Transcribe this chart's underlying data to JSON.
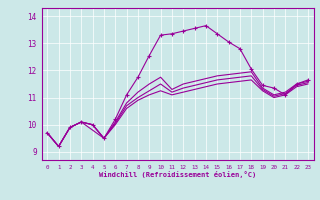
{
  "xlabel": "Windchill (Refroidissement éolien,°C)",
  "bg_color": "#cce8e8",
  "line_color": "#990099",
  "xlim": [
    -0.5,
    23.5
  ],
  "ylim": [
    8.7,
    14.3
  ],
  "yticks": [
    9,
    10,
    11,
    12,
    13,
    14
  ],
  "xticks": [
    0,
    1,
    2,
    3,
    4,
    5,
    6,
    7,
    8,
    9,
    10,
    11,
    12,
    13,
    14,
    15,
    16,
    17,
    18,
    19,
    20,
    21,
    22,
    23
  ],
  "lines": [
    {
      "x": [
        0,
        1,
        2,
        3,
        4,
        5,
        6,
        7,
        8,
        9,
        10,
        11,
        12,
        13,
        14,
        15,
        16,
        17,
        18,
        19,
        20,
        21,
        22,
        23
      ],
      "y": [
        9.7,
        9.2,
        9.9,
        10.1,
        10.0,
        9.5,
        10.0,
        10.6,
        10.9,
        11.1,
        11.25,
        11.1,
        11.2,
        11.3,
        11.4,
        11.5,
        11.55,
        11.6,
        11.65,
        11.25,
        11.0,
        11.1,
        11.4,
        11.5
      ],
      "marker": null,
      "lw": 0.8
    },
    {
      "x": [
        0,
        1,
        2,
        3,
        4,
        5,
        6,
        7,
        8,
        9,
        10,
        11,
        12,
        13,
        14,
        15,
        16,
        17,
        18,
        19,
        20,
        21,
        22,
        23
      ],
      "y": [
        9.7,
        9.2,
        9.9,
        10.1,
        10.0,
        9.5,
        10.05,
        10.7,
        11.0,
        11.25,
        11.5,
        11.2,
        11.35,
        11.45,
        11.55,
        11.65,
        11.7,
        11.75,
        11.8,
        11.3,
        11.05,
        11.15,
        11.45,
        11.55
      ],
      "marker": null,
      "lw": 0.8
    },
    {
      "x": [
        0,
        1,
        2,
        3,
        4,
        5,
        6,
        7,
        8,
        9,
        10,
        11,
        12,
        13,
        14,
        15,
        16,
        17,
        18,
        19,
        20,
        21,
        22,
        23
      ],
      "y": [
        9.7,
        9.2,
        9.9,
        10.1,
        9.8,
        9.5,
        10.1,
        10.8,
        11.2,
        11.5,
        11.75,
        11.3,
        11.5,
        11.6,
        11.7,
        11.8,
        11.85,
        11.9,
        11.95,
        11.35,
        11.1,
        11.2,
        11.5,
        11.6
      ],
      "marker": null,
      "lw": 0.8
    },
    {
      "x": [
        0,
        1,
        2,
        3,
        4,
        5,
        6,
        7,
        8,
        9,
        10,
        11,
        12,
        13,
        14,
        15,
        16,
        17,
        18,
        19,
        20,
        21,
        22,
        23
      ],
      "y": [
        9.7,
        9.2,
        9.9,
        10.1,
        10.0,
        9.5,
        10.2,
        11.1,
        11.75,
        12.55,
        13.3,
        13.35,
        13.45,
        13.55,
        13.65,
        13.35,
        13.05,
        12.8,
        12.05,
        11.45,
        11.35,
        11.1,
        11.5,
        11.65
      ],
      "marker": "+",
      "lw": 0.8
    }
  ]
}
